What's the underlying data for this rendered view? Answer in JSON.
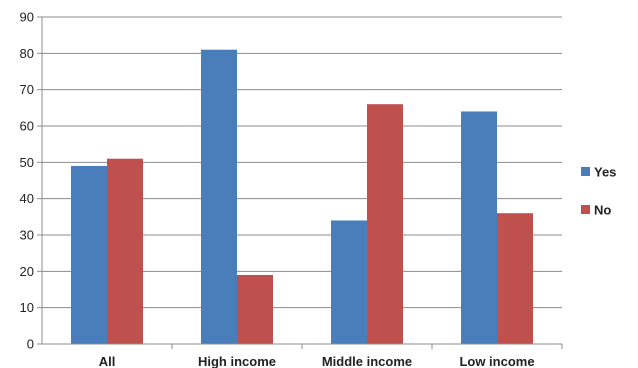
{
  "chart_data": {
    "type": "bar",
    "categories": [
      "All",
      "High income",
      "Middle income",
      "Low income"
    ],
    "series": [
      {
        "name": "Yes",
        "color": "#4a7ebb",
        "values": [
          49,
          81,
          34,
          64
        ]
      },
      {
        "name": "No",
        "color": "#c0504d",
        "values": [
          51,
          19,
          66,
          36
        ]
      }
    ],
    "ylim": [
      0,
      90
    ],
    "yticks": [
      0,
      10,
      20,
      30,
      40,
      50,
      60,
      70,
      80,
      90
    ],
    "grid": true,
    "legend_position": "right",
    "title": "",
    "xlabel": "",
    "ylabel": ""
  }
}
